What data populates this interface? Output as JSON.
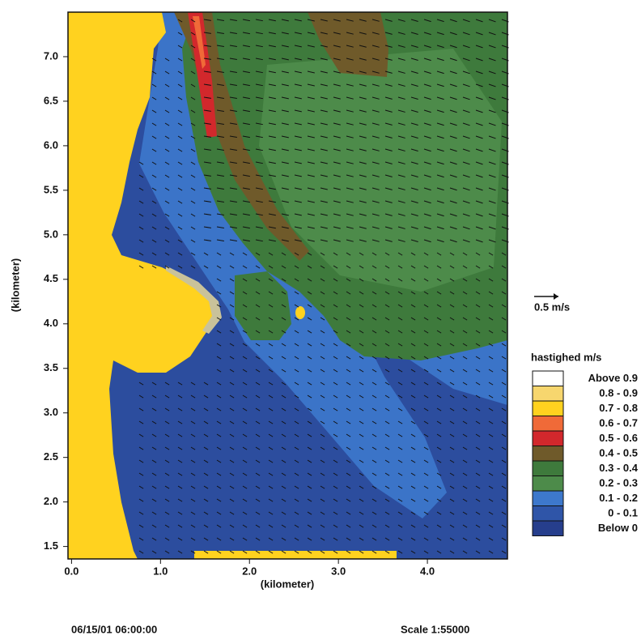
{
  "chart_data": {
    "type": "contour",
    "x_label": "(kilometer)",
    "y_label": "(kilometer)",
    "xlim": [
      -0.04,
      4.9
    ],
    "ylim": [
      1.36,
      7.5
    ],
    "xticks": [
      {
        "value": 0,
        "label": "0.0"
      },
      {
        "value": 1,
        "label": "1.0"
      },
      {
        "value": 2,
        "label": "2.0"
      },
      {
        "value": 3,
        "label": "3.0"
      },
      {
        "value": 4,
        "label": "4.0"
      }
    ],
    "yticks": [
      {
        "value": 1.5,
        "label": "1.5"
      },
      {
        "value": 2,
        "label": "2.0"
      },
      2.5,
      {
        "value": 3,
        "label": "3.0"
      },
      3.5,
      {
        "value": 4,
        "label": "4.0"
      },
      4.5,
      {
        "value": 5,
        "label": "5.0"
      },
      5.5,
      {
        "value": 6,
        "label": "6.0"
      },
      6.5,
      {
        "value": 7,
        "label": "7.0"
      }
    ],
    "vector_scale": "0.5 m/s",
    "legend": {
      "title": "hastighed m/s",
      "entries": [
        {
          "label": "Above 0.9",
          "color": "#ffffff"
        },
        {
          "label": "0.8 - 0.9",
          "color": "#f7d66e"
        },
        {
          "label": "0.7 - 0.8",
          "color": "#ffd21f"
        },
        {
          "label": "0.6 - 0.7",
          "color": "#f06a38"
        },
        {
          "label": "0.5 - 0.6",
          "color": "#d2282c"
        },
        {
          "label": "0.4 - 0.5",
          "color": "#6f5a2a"
        },
        {
          "label": "0.3 - 0.4",
          "color": "#3e7a3c"
        },
        {
          "label": "0.2 - 0.3",
          "color": "#4d8b4a"
        },
        {
          "label": "0.1 - 0.2",
          "color": "#3d78cc"
        },
        {
          "label": "0 - 0.1",
          "color": "#2f55a8"
        },
        {
          "label": "Below 0",
          "color": "#263e8c"
        }
      ]
    },
    "timestamp": "06/15/01 06:00:00",
    "scale_text": "Scale 1:55000"
  }
}
